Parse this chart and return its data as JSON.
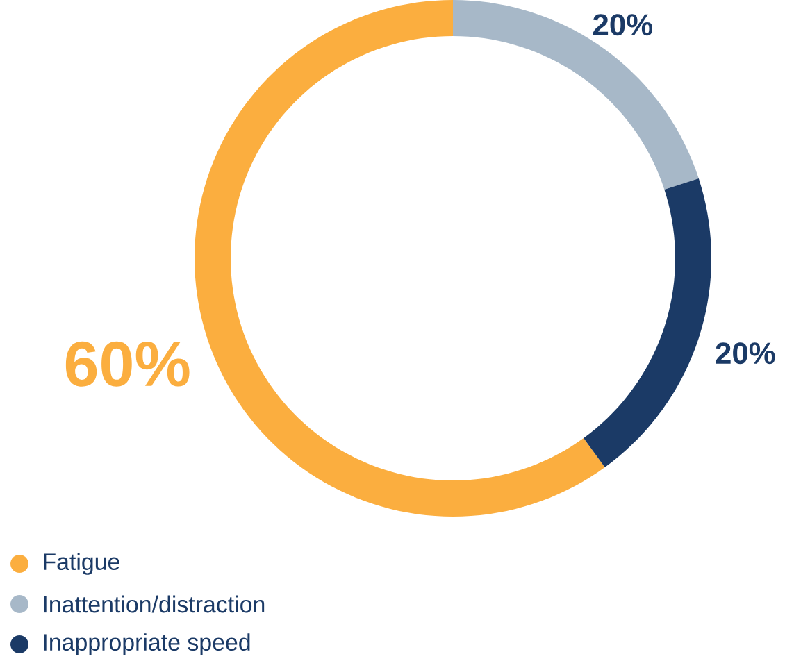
{
  "chart_data": {
    "type": "donut",
    "categories": [
      "Fatigue",
      "Inattention/distraction",
      "Inappropriate speed"
    ],
    "values": [
      60,
      20,
      20
    ],
    "colors": [
      "#fbae3f",
      "#a7b8c8",
      "#1b3a66"
    ],
    "value_labels": [
      "60%",
      "20%",
      "20%"
    ],
    "legend": "bottom left"
  }
}
